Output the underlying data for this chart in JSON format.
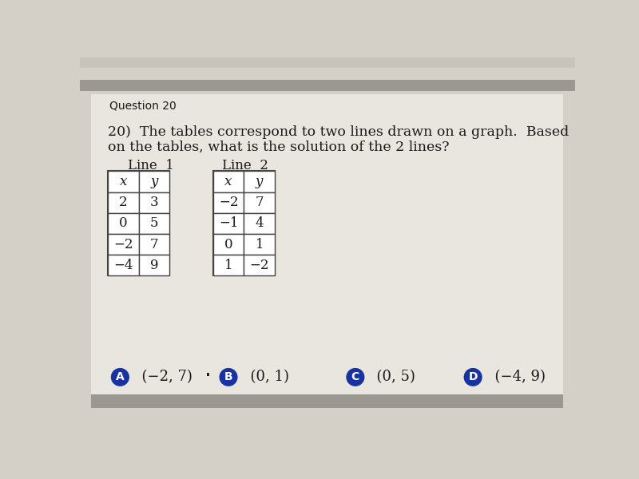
{
  "question_number": "Question 20",
  "question_text_line1": "20)  The tables correspond to two lines drawn on a graph.  Based",
  "question_text_line2": "on the tables, what is the solution of the 2 lines?",
  "line1_label": "Line  1",
  "line2_label": "Line  2",
  "line1_headers": [
    "x",
    "y"
  ],
  "line1_data": [
    [
      "2",
      "3"
    ],
    [
      "0",
      "5"
    ],
    [
      "−2",
      "7"
    ],
    [
      "−4",
      "9"
    ]
  ],
  "line2_headers": [
    "x",
    "y"
  ],
  "line2_data": [
    [
      "−2",
      "7"
    ],
    [
      "−1",
      "4"
    ],
    [
      "0",
      "1"
    ],
    [
      "1",
      "−2"
    ]
  ],
  "choices": [
    {
      "label": "A",
      "text": "(−2, 7)"
    },
    {
      "label": "B",
      "text": "(0, 1)"
    },
    {
      "label": "C",
      "text": "(0, 5)"
    },
    {
      "label": "D",
      "text": "(−4, 9)"
    }
  ],
  "bg_top_color": "#c8c4bc",
  "bg_main_color": "#d4d0c8",
  "paper_color": "#e8e6df",
  "gray_bar_color": "#9a9890",
  "circle_color": "#1832a0",
  "text_color": "#1a1a1a",
  "table_line_color": "#444444",
  "question_num_fontsize": 10,
  "question_text_fontsize": 12.5,
  "table_fontsize": 12,
  "label_fontsize": 12,
  "choice_fontsize": 13
}
